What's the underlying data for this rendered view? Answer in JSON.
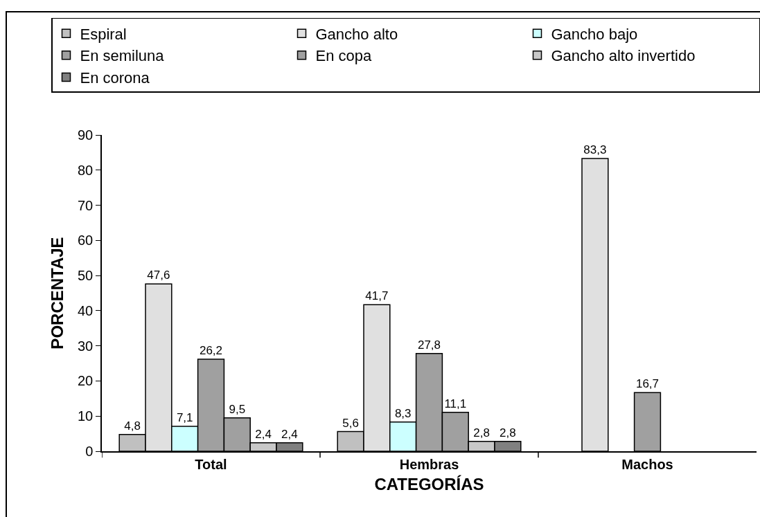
{
  "chart_data": {
    "type": "bar",
    "xlabel": "CATEGORÍAS",
    "ylabel": "PORCENTAJE",
    "categories": [
      "Total",
      "Hembras",
      "Machos"
    ],
    "series": [
      {
        "name": "Espiral",
        "color": "#c0c0c0",
        "values": [
          4.8,
          5.6,
          null
        ],
        "value_labels": [
          "4,8",
          "5,6",
          null
        ]
      },
      {
        "name": "Gancho alto",
        "color": "#e0e0e0",
        "values": [
          47.6,
          41.7,
          83.3
        ],
        "value_labels": [
          "47,6",
          "41,7",
          "83,3"
        ]
      },
      {
        "name": "Gancho bajo",
        "color": "#ccffff",
        "values": [
          7.1,
          8.3,
          null
        ],
        "value_labels": [
          "7,1",
          "8,3",
          null
        ]
      },
      {
        "name": "En semiluna",
        "color": "#a0a0a0",
        "values": [
          26.2,
          27.8,
          16.7
        ],
        "value_labels": [
          "26,2",
          "27,8",
          "16,7"
        ]
      },
      {
        "name": "En copa",
        "color": "#a0a0a0",
        "values": [
          9.5,
          11.1,
          null
        ],
        "value_labels": [
          "9,5",
          "11,1",
          null
        ]
      },
      {
        "name": "Gancho alto invertido",
        "color": "#c8c8c8",
        "values": [
          2.4,
          2.8,
          null
        ],
        "value_labels": [
          "2,4",
          "2,8",
          null
        ]
      },
      {
        "name": "En corona",
        "color": "#808080",
        "values": [
          2.4,
          2.8,
          null
        ],
        "value_labels": [
          "2,4",
          "2,8",
          null
        ]
      }
    ],
    "ylim": [
      0,
      90
    ],
    "yticks": [
      0,
      10,
      20,
      30,
      40,
      50,
      60,
      70,
      80,
      90
    ],
    "grid": false,
    "legend": "top"
  }
}
